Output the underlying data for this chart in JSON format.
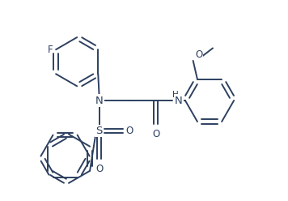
{
  "bg_color": "#ffffff",
  "line_color": "#2d4060",
  "line_width": 1.4,
  "font_size": 8.5,
  "figsize": [
    3.56,
    2.48
  ],
  "dpi": 100,
  "xlim": [
    -1.8,
    4.3
  ],
  "ylim": [
    -2.8,
    2.8
  ]
}
